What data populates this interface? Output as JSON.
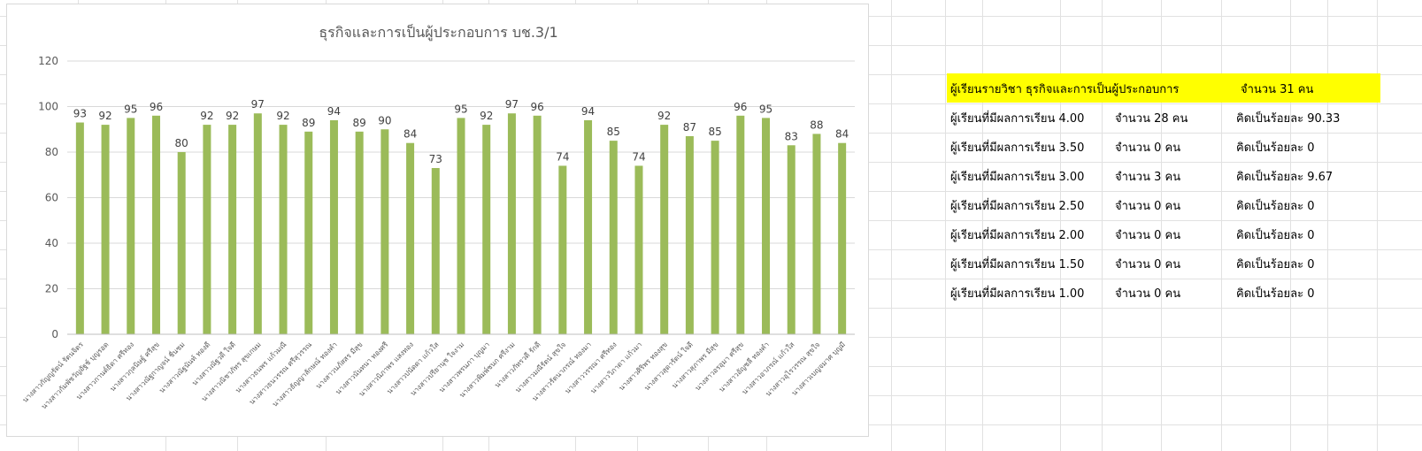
{
  "chart_data": {
    "type": "bar",
    "title": "ธุรกิจและการเป็นผู้ประกอบการ  บช.3/1",
    "xlabel": "",
    "ylabel": "",
    "ylim": [
      0,
      120
    ],
    "yticks": [
      0,
      20,
      40,
      60,
      80,
      100,
      120
    ],
    "grid": true,
    "bar_color": "#9bbb59",
    "categories": [
      "นางสาวกัญญรัตน์ รัตนจิตร",
      "นางสาวกัมพัชวัญอัฐช์ บุญรอด",
      "นางสาวกานต์ธิดา ศรีทอง",
      "นางสาวกุลนิษฐ์ ศรีสุข",
      "นางสาวณัฐกาญจน์ ชื่นชม",
      "นางสาวณัฐนันท์ ทองดี",
      "นางสาวณัฐวดี ใจดี",
      "นางสาวณิชาภัทร สุขเกษม",
      "นางสาวธนพร แก้วมณี",
      "นางสาวธนวรรณ ศรีสุวรรณ",
      "นางสาวธัญญาลักษณ์ ทองคำ",
      "นางสาวนภัสสร มีสุข",
      "นางสาวนันทนา ทองศรี",
      "นางสาวนิภาพร แสงทอง",
      "นางสาวปนัดดา แก้วใส",
      "นางสาวปรียานุช ใจงาม",
      "นางสาวพรนภา บุญมา",
      "นางสาวพิมพ์ชนก ศรีงาม",
      "นางสาวภัทรวดี รักดี",
      "นางสาวมณีรัตน์ สุขใจ",
      "นางสาวรัตนาภรณ์ ทองมา",
      "นางสาววรรณา ศรีทอง",
      "นางสาววิภาดา แก้วมา",
      "นางสาวศิริพร ทองสุข",
      "นางสาวสุดารัตน์ ใจดี",
      "นางสาวสุภาพร มีสุข",
      "นางสาวอรอุมา ศรีสุข",
      "นางสาวอัญชลี ทองคำ",
      "นางสาวอาภรณ์ แก้วใส",
      "นางสาวอุไรวรรณ สุขใจ",
      "นางสาวเบญจมาศ บุญมี"
    ],
    "values": [
      93,
      92,
      95,
      96,
      80,
      92,
      92,
      97,
      92,
      89,
      94,
      89,
      90,
      84,
      73,
      95,
      92,
      97,
      96,
      74,
      94,
      85,
      74,
      92,
      87,
      85,
      96,
      95,
      83,
      88,
      84
    ]
  },
  "summary": {
    "header": {
      "label": "ผู้เรียนรายวิชา ธุรกิจและการเป็นผู้ประกอบการ",
      "count": "จำนวน 31 คน",
      "color": "#ffff00"
    },
    "rows": [
      {
        "label": "ผู้เรียนที่มีผลการเรียน 4.00",
        "count": "จำนวน    28 คน",
        "percent": "คิดเป็นร้อยละ 90.33"
      },
      {
        "label": "ผู้เรียนที่มีผลการเรียน 3.50",
        "count": "จำนวน    0 คน",
        "percent": "คิดเป็นร้อยละ 0"
      },
      {
        "label": "ผู้เรียนที่มีผลการเรียน 3.00",
        "count": "จำนวน    3 คน",
        "percent": "คิดเป็นร้อยละ 9.67"
      },
      {
        "label": "ผู้เรียนที่มีผลการเรียน 2.50",
        "count": "จำนวน    0 คน",
        "percent": "คิดเป็นร้อยละ 0"
      },
      {
        "label": "ผู้เรียนที่มีผลการเรียน 2.00",
        "count": "จำนวน    0 คน",
        "percent": "คิดเป็นร้อยละ 0"
      },
      {
        "label": "ผู้เรียนที่มีผลการเรียน 1.50",
        "count": "จำนวน    0 คน",
        "percent": "คิดเป็นร้อยละ 0"
      },
      {
        "label": "ผู้เรียนที่มีผลการเรียน 1.00",
        "count": "จำนวน    0 คน",
        "percent": "คิดเป็นร้อยละ 0"
      }
    ]
  }
}
